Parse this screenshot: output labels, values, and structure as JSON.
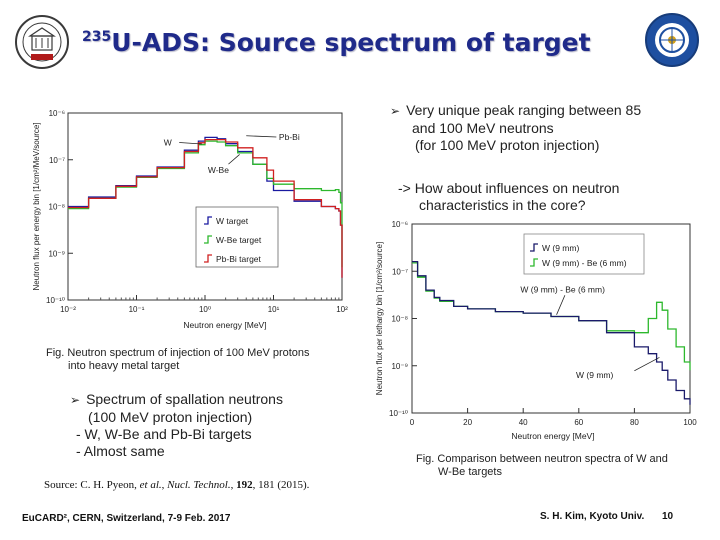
{
  "slide": {
    "title_sup": "235",
    "title_main": "U-ADS: Source spectrum of target"
  },
  "logos": {
    "left": {
      "name": "university-seal"
    },
    "right": {
      "name": "kyoto-university-research-reactor-institute-seal"
    }
  },
  "bullets_right": {
    "b1_line1": "Very unique peak ranging between 85",
    "b1_line2": "and 100 MeV neutrons",
    "b1_line3": "(for 100 MeV proton injection)",
    "q_line1": "-> How about influences on neutron",
    "q_line2": "characteristics in the core?"
  },
  "fig1_caption": {
    "line1": "Fig. Neutron spectrum of injection of 100 MeV protons",
    "line2": "into heavy metal target"
  },
  "bullets_left": {
    "line1": "Spectrum of spallation neutrons",
    "line2": "(100 MeV proton injection)",
    "line3": "- W, W-Be and Pb-Bi targets",
    "line4": "- Almost same"
  },
  "source": {
    "prefix": "Source: C. H. Pyeon, ",
    "etal": "et al.",
    "mid": ", ",
    "journal": "Nucl. Technol.",
    "sep": ", ",
    "volume": "192",
    "rest": ", 181 (2015)."
  },
  "fig2_caption": {
    "line1": "Fig. Comparison between neutron spectra of W and",
    "line2": "W-Be targets"
  },
  "footer": {
    "left": "EuCARD², CERN, Switzerland, 7-9 Feb. 2017",
    "right": "S. H. Kim, Kyoto Univ.",
    "page": "10"
  },
  "chart_data": [
    {
      "type": "line",
      "xscale": "log",
      "yscale": "log",
      "xlabel": "Neutron energy [MeV]",
      "ylabel": "Neutron flux per energy bin [1/cm²/MeV/source]",
      "xlim": [
        0.01,
        100
      ],
      "ylim": [
        1e-10,
        1e-06
      ],
      "x_ticks": [
        "10⁻²",
        "10⁻¹",
        "10⁰",
        "10¹",
        "10²"
      ],
      "y_ticks": [
        "10⁻⁶",
        "10⁻⁷",
        "10⁻⁸",
        "10⁻⁹",
        "10⁻¹⁰"
      ],
      "legend": [
        "W target",
        "W-Be target",
        "Pb-Bi target"
      ],
      "annotations": [
        "W",
        "Pb-Bi",
        "W-Be"
      ],
      "series": [
        {
          "name": "W target",
          "color": "#1a1aa0",
          "x": [
            0.01,
            0.02,
            0.05,
            0.1,
            0.2,
            0.5,
            0.8,
            1.0,
            1.5,
            2,
            3,
            5,
            8,
            10,
            20,
            50,
            80,
            90,
            95,
            100
          ],
          "y": [
            1e-08,
            1.6e-08,
            2.8e-08,
            4.5e-08,
            7e-08,
            1.6e-07,
            2.5e-07,
            3e-07,
            2.8e-07,
            2.2e-07,
            1.5e-07,
            8e-08,
            3.5e-08,
            2.2e-08,
            1.3e-08,
            1e-08,
            9e-09,
            8e-09,
            4e-09,
            3e-10
          ]
        },
        {
          "name": "W-Be target",
          "color": "#2db82d",
          "x": [
            0.01,
            0.02,
            0.05,
            0.1,
            0.2,
            0.5,
            0.8,
            1.0,
            1.5,
            2,
            3,
            5,
            8,
            10,
            20,
            50,
            80,
            90,
            95,
            100
          ],
          "y": [
            9e-09,
            1.5e-08,
            2.6e-08,
            4.2e-08,
            6.5e-08,
            1.4e-07,
            2.1e-07,
            2.5e-07,
            2.4e-07,
            2e-07,
            1.4e-07,
            8e-08,
            4e-08,
            3e-08,
            2.4e-08,
            2.2e-08,
            2.3e-08,
            2e-08,
            1.2e-08,
            5e-10
          ]
        },
        {
          "name": "Pb-Bi target",
          "color": "#d02020",
          "x": [
            0.01,
            0.02,
            0.05,
            0.1,
            0.2,
            0.5,
            0.8,
            1.0,
            1.5,
            2,
            3,
            5,
            8,
            10,
            20,
            50,
            80,
            90,
            95,
            100
          ],
          "y": [
            9.5e-09,
            1.5e-08,
            2.7e-08,
            4.3e-08,
            6.8e-08,
            1.5e-07,
            2.3e-07,
            2.7e-07,
            2.7e-07,
            2.4e-07,
            1.8e-07,
            1.1e-07,
            6e-08,
            3.5e-08,
            1.4e-08,
            1e-08,
            9e-09,
            8e-09,
            4e-09,
            3e-10
          ]
        }
      ]
    },
    {
      "type": "line",
      "xscale": "linear",
      "yscale": "log",
      "xlabel": "Neutron energy [MeV]",
      "ylabel": "Neutron flux per lethargy bin [1/cm²/source]",
      "xlim": [
        0,
        100
      ],
      "ylim": [
        1e-10,
        1e-06
      ],
      "x_ticks": [
        "0",
        "20",
        "40",
        "60",
        "80",
        "100"
      ],
      "y_ticks": [
        "10⁻⁶",
        "10⁻⁷",
        "10⁻⁸",
        "10⁻⁹",
        "10⁻¹⁰"
      ],
      "legend": [
        "W (9 mm)",
        "W (9 mm) - Be (6 mm)"
      ],
      "annotations": [
        "W (9 mm) - Be (6 mm)",
        "W (9 mm)"
      ],
      "series": [
        {
          "name": "W (9 mm)",
          "color": "#1a1a6a",
          "x": [
            0,
            2,
            5,
            8,
            10,
            15,
            20,
            30,
            40,
            50,
            60,
            70,
            80,
            85,
            88,
            90,
            92,
            95,
            98,
            100
          ],
          "y": [
            1.6e-07,
            8e-08,
            4e-08,
            2.8e-08,
            2.4e-08,
            1.8e-08,
            1.6e-08,
            1.4e-08,
            1.3e-08,
            1.1e-08,
            9e-09,
            5e-09,
            2.5e-09,
            1.8e-09,
            1.2e-09,
            8e-10,
            5e-10,
            3e-10,
            2e-10,
            1.5e-10
          ]
        },
        {
          "name": "W (9 mm) - Be (6 mm)",
          "color": "#2db82d",
          "x": [
            0,
            2,
            5,
            8,
            10,
            15,
            20,
            30,
            40,
            50,
            60,
            70,
            80,
            85,
            88,
            90,
            92,
            95,
            98,
            100
          ],
          "y": [
            1.5e-07,
            7.5e-08,
            3.8e-08,
            2.7e-08,
            2.3e-08,
            1.8e-08,
            1.6e-08,
            1.4e-08,
            1.3e-08,
            1.1e-08,
            9e-09,
            5.5e-09,
            5e-09,
            1e-08,
            2.2e-08,
            1.5e-08,
            6e-09,
            2.5e-09,
            1.2e-09,
            8e-10
          ]
        }
      ]
    }
  ]
}
